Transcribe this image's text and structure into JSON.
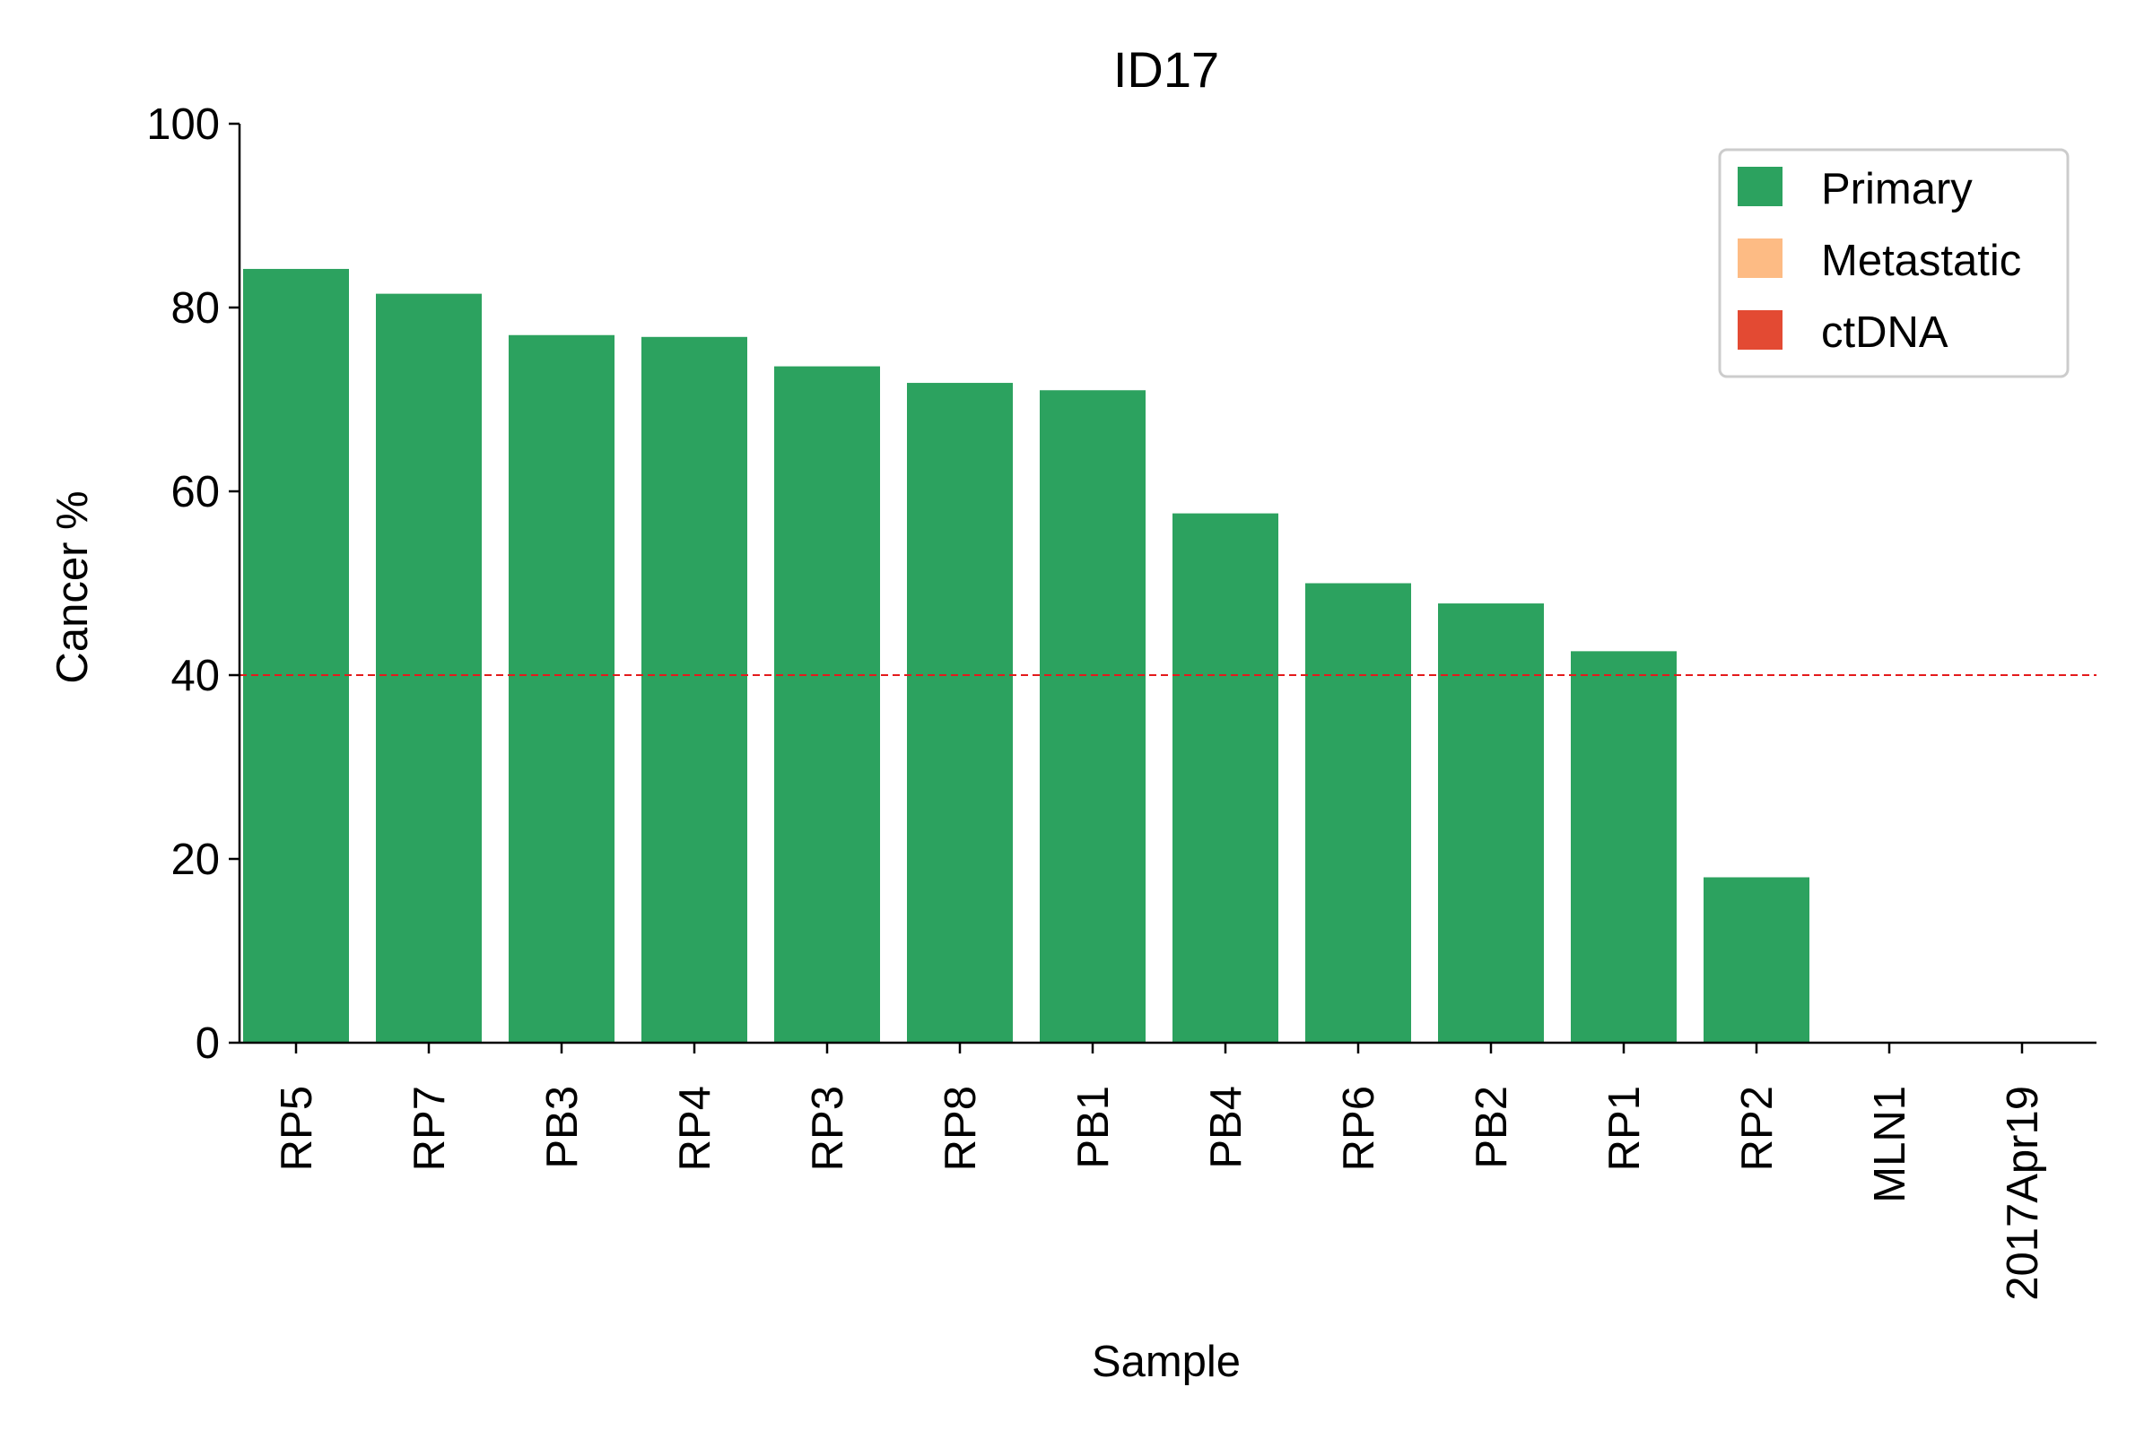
{
  "chart_data": {
    "type": "bar",
    "title": "ID17",
    "xlabel": "Sample",
    "ylabel": "Cancer %",
    "ylim": [
      0,
      100
    ],
    "yticks": [
      0,
      20,
      40,
      60,
      80,
      100
    ],
    "yticklabels": [
      "0",
      "20",
      "40",
      "60",
      "80",
      "100"
    ],
    "categories": [
      "RP5",
      "RP7",
      "PB3",
      "RP4",
      "RP3",
      "RP8",
      "PB1",
      "PB4",
      "RP6",
      "PB2",
      "RP1",
      "RP2",
      "MLN1",
      "2017Apr19"
    ],
    "values": [
      84.2,
      81.5,
      77.0,
      76.8,
      73.6,
      71.8,
      71.0,
      57.6,
      50.0,
      47.8,
      42.6,
      18.0,
      0,
      0
    ],
    "sample_types": [
      "Primary",
      "Primary",
      "Primary",
      "Primary",
      "Primary",
      "Primary",
      "Primary",
      "Primary",
      "Primary",
      "Primary",
      "Primary",
      "Primary",
      "Metastatic",
      "ctDNA"
    ],
    "reference_line": {
      "y": 40,
      "style": "dashed",
      "color": "#e41a1c"
    },
    "legend": {
      "placement": "top-right",
      "entries": [
        {
          "label": "Primary",
          "color": "#2ca25f"
        },
        {
          "label": "Metastatic",
          "color": "#fdbb84"
        },
        {
          "label": "ctDNA",
          "color": "#e34a33"
        }
      ]
    },
    "grid": false
  }
}
